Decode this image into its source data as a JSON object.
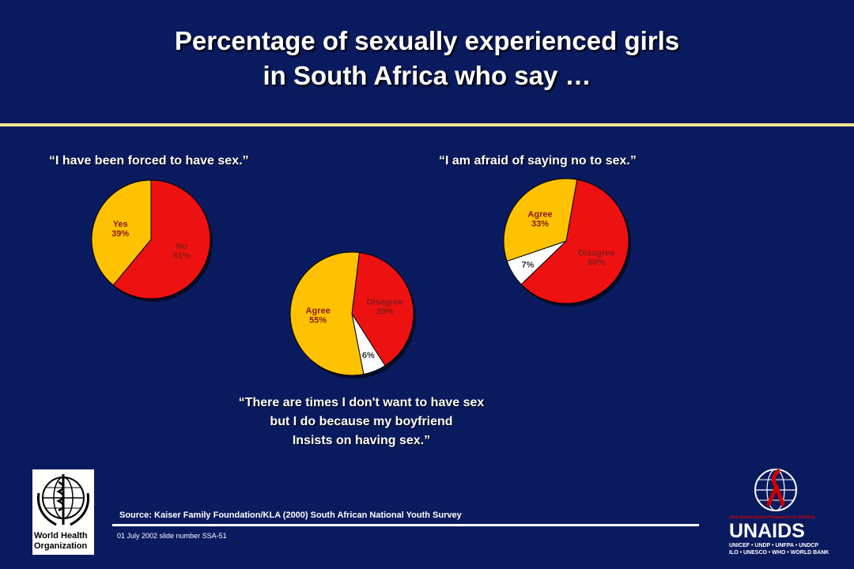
{
  "title": {
    "line1": "Percentage of sexually experienced girls",
    "line2": "in South Africa who say …"
  },
  "colors": {
    "red": "#ee1111",
    "yellow": "#ffc200",
    "white": "#ffffff",
    "background": "#0a1a5e"
  },
  "chart_data": [
    {
      "type": "pie",
      "title": "“I have been forced to have sex.”",
      "slices": [
        {
          "label": "No",
          "value": 61,
          "display": "61%",
          "color": "#ee1111"
        },
        {
          "label": "Yes",
          "value": 39,
          "display": "39%",
          "color": "#ffc200"
        }
      ]
    },
    {
      "type": "pie",
      "title_lines": [
        "“There are times I don't want to have sex",
        "but I do because my boyfriend",
        "Insists on having sex.”"
      ],
      "slices": [
        {
          "label": "Disagree",
          "value": 39,
          "display": "39%",
          "color": "#ee1111"
        },
        {
          "label": "",
          "value": 6,
          "display": "6%",
          "color": "#ffffff"
        },
        {
          "label": "Agree",
          "value": 55,
          "display": "55%",
          "color": "#ffc200"
        }
      ]
    },
    {
      "type": "pie",
      "title": "“I am afraid of saying no to sex.”",
      "slices": [
        {
          "label": "Disagree",
          "value": 60,
          "display": "60%",
          "color": "#ee1111"
        },
        {
          "label": "",
          "value": 7,
          "display": "7%",
          "color": "#ffffff"
        },
        {
          "label": "Agree",
          "value": 33,
          "display": "33%",
          "color": "#ffc200"
        }
      ]
    }
  ],
  "source": "Source:  Kaiser Family Foundation/KLA (2000) South African National Youth Survey",
  "footer": "01 July 2002 slide number SSA-51",
  "who_logo": {
    "line1": "World Health",
    "line2": "Organization"
  },
  "unaids_logo": {
    "tagline": "Joint United Nations Programme on HIV/AIDS",
    "name": "UNAIDS",
    "sub1": "UNICEF • UNDP • UNFPA • UNDCP",
    "sub2": "ILO • UNESCO • WHO • WORLD BANK"
  }
}
